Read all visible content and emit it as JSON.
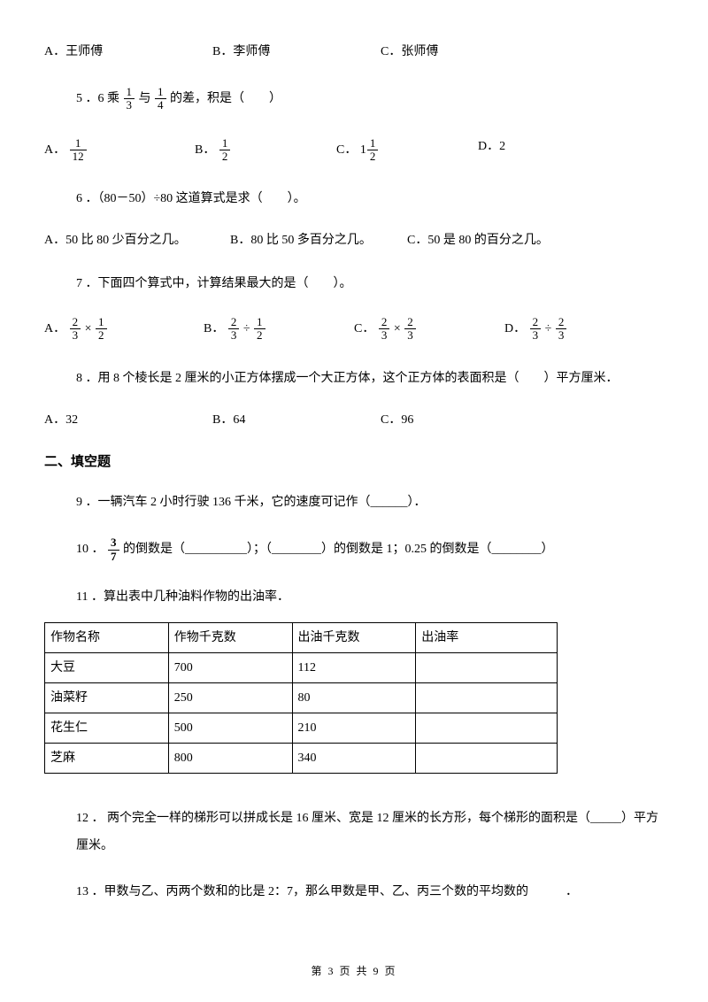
{
  "q4_options": {
    "A": "A．王师傅",
    "B": "B．李师傅",
    "C": "C．张师傅"
  },
  "q5": {
    "prefix": "5 ．6 乘",
    "f1_num": "1",
    "f1_den": "3",
    "mid": "与",
    "f2_num": "1",
    "f2_den": "4",
    "suffix": "的差，积是（　　）",
    "options": {
      "A_label": "A．",
      "A_num": "1",
      "A_den": "12",
      "B_label": "B．",
      "B_num": "1",
      "B_den": "2",
      "C_label": "C．",
      "C_whole": "1",
      "C_num": "1",
      "C_den": "2",
      "D_label": "D．2"
    }
  },
  "q6": {
    "text": "6 ．（80－50）÷80 这道算式是求（　　）。",
    "A": "A．50 比 80 少百分之几。",
    "B": "B．80 比 50 多百分之几。",
    "C": "C．50 是 80 的百分之几。"
  },
  "q7": {
    "text": "7 ．下面四个算式中，计算结果最大的是（　　）。",
    "A_label": "A．",
    "A_n1": "2",
    "A_d1": "3",
    "A_op": "×",
    "A_n2": "1",
    "A_d2": "2",
    "B_label": "B．",
    "B_n1": "2",
    "B_d1": "3",
    "B_op": "÷",
    "B_n2": "1",
    "B_d2": "2",
    "C_label": "C．",
    "C_n1": "2",
    "C_d1": "3",
    "C_op": "×",
    "C_n2": "2",
    "C_d2": "3",
    "D_label": "D．",
    "D_n1": "2",
    "D_d1": "3",
    "D_op": "÷",
    "D_n2": "2",
    "D_d2": "3"
  },
  "q8": {
    "text": "8 ．用 8 个棱长是 2 厘米的小正方体摆成一个大正方体，这个正方体的表面积是（　　）平方厘米．",
    "A": "A．32",
    "B": "B．64",
    "C": "C．96"
  },
  "section2": "二、填空题",
  "q9": "9 ．一辆汽车 2 小时行驶 136 千米，它的速度可记作（______）．",
  "q10": {
    "prefix": "10 ．",
    "f_num": "3",
    "f_den": "7",
    "mid1": "的倒数是（__________）；（________）的倒数是 1；0.25 的倒数是（________）"
  },
  "q11": "11 ．算出表中几种油料作物的出油率．",
  "table": {
    "headers": [
      "作物名称",
      "作物千克数",
      "出油千克数",
      "出油率"
    ],
    "rows": [
      [
        "大豆",
        "700",
        "112",
        ""
      ],
      [
        "油菜籽",
        "250",
        "80",
        ""
      ],
      [
        "花生仁",
        "500",
        "210",
        ""
      ],
      [
        "芝麻",
        "800",
        "340",
        ""
      ]
    ],
    "col_widths": [
      "140px",
      "140px",
      "140px",
      "160px"
    ]
  },
  "q12": "12 ． 两个完全一样的梯形可以拼成长是 16 厘米、宽是 12 厘米的长方形，每个梯形的面积是（_____）平方厘米。",
  "q13": "13 ．甲数与乙、丙两个数和的比是 2：7，那么甲数是甲、乙、丙三个数的平均数的　　　．",
  "footer": "第 3 页 共 9 页"
}
